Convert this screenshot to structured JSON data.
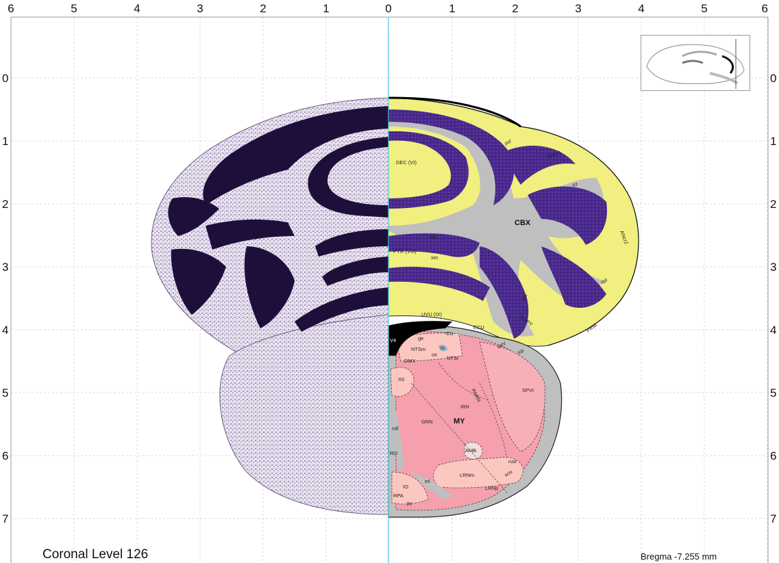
{
  "caption": {
    "level_title": "Coronal Level 126",
    "bregma": "Bregma -7.255 mm"
  },
  "axes": {
    "top_ticks": [
      "6",
      "5",
      "4",
      "3",
      "2",
      "1",
      "0",
      "1",
      "2",
      "3",
      "4",
      "5",
      "6"
    ],
    "left_ticks": [
      "0",
      "1",
      "2",
      "3",
      "4",
      "5",
      "6",
      "7"
    ],
    "right_ticks": [
      "0",
      "1",
      "2",
      "3",
      "4",
      "5",
      "6",
      "7"
    ]
  },
  "regions": {
    "cbx": "CBX",
    "my": "MY",
    "dec": "DEC (VI)",
    "pyr": "PYR (VIII)",
    "uvu": "UVU (IX)",
    "ancr1": "ANcr1",
    "ancr2": "ANcr2",
    "copy": "COPY",
    "prm": "PRM",
    "v4": "V4",
    "cu": "CU",
    "ecu": "ECU",
    "ge": "ge",
    "ntsm": "NTSm",
    "ce": "ce",
    "ts": "ts",
    "ntsl": "NTSl",
    "dmx": "DMX",
    "xii": "XII",
    "parn": "PARN",
    "spvi": "SPVI",
    "irn": "IRN",
    "grn": "GRN",
    "amb": "AMB",
    "lrnm": "LRNm",
    "lrnp": "LRNp",
    "io": "IO",
    "rpa": "RPA",
    "ro": "RO"
  },
  "fibres": {
    "psf_top": "psf",
    "icf": "icf",
    "arb": "arb",
    "sec": "sec",
    "apf": "apf",
    "ppf": "ppf",
    "sptv": "sptV",
    "icp": "icp",
    "mlf": "mlf",
    "ml": "ml",
    "rust": "rust",
    "sctv": "sctv",
    "py": "py"
  },
  "colors": {
    "cortex_yellow": "#f0ef80",
    "granular_purple": "#4a2a8c",
    "white_matter": "#bfbfbf",
    "medulla_pink": "#f6a0ad",
    "medulla_light": "#fcc7c0",
    "midline": "#46c8d8",
    "nissl_dark": "#1e0f3a"
  }
}
